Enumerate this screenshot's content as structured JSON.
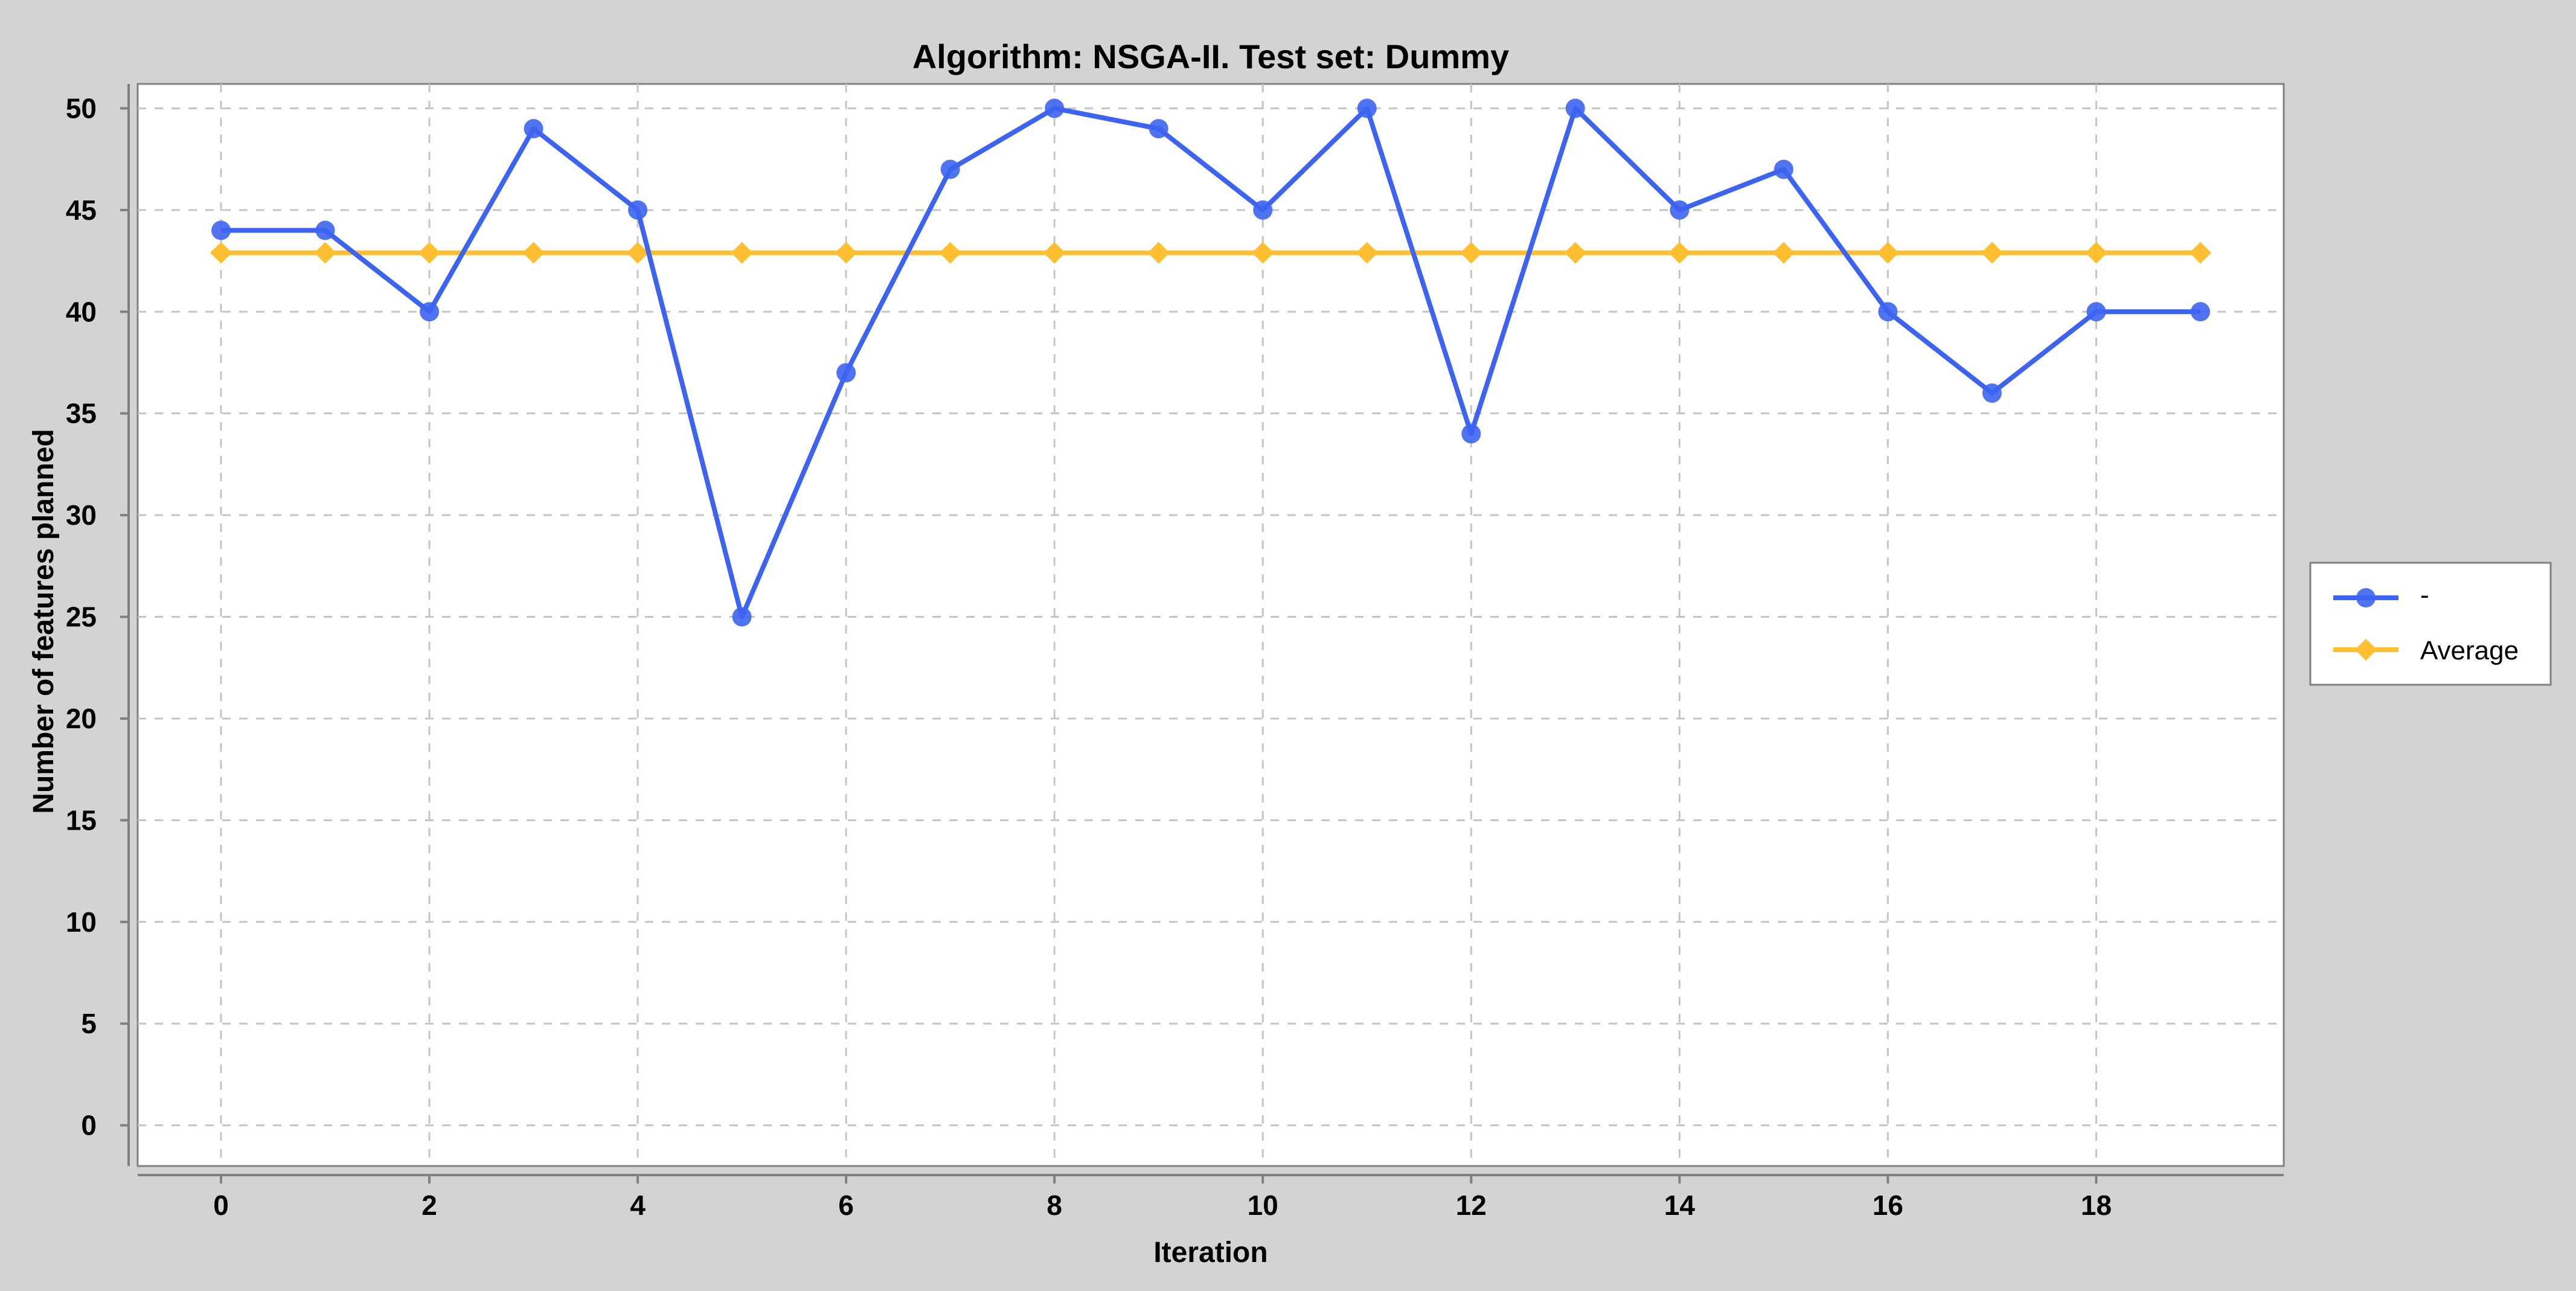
{
  "chart_data": {
    "type": "line",
    "title": "Algorithm: NSGA-II. Test set: Dummy",
    "xlabel": "Iteration",
    "ylabel": "Number of features planned",
    "x": [
      0,
      1,
      2,
      3,
      4,
      5,
      6,
      7,
      8,
      9,
      10,
      11,
      12,
      13,
      14,
      15,
      16,
      17,
      18,
      19
    ],
    "xticks": [
      "0",
      "2",
      "4",
      "6",
      "8",
      "10",
      "12",
      "14",
      "16",
      "18"
    ],
    "yticks": [
      "0",
      "5",
      "10",
      "15",
      "20",
      "25",
      "30",
      "35",
      "40",
      "45",
      "50"
    ],
    "xlim": [
      -0.8,
      19.8
    ],
    "ylim": [
      -2,
      51.2
    ],
    "grid": true,
    "legend_position": "right",
    "series": [
      {
        "name": "-",
        "color": "#3c64f0",
        "marker": "circle",
        "values": [
          44,
          44,
          40,
          49,
          45,
          25,
          37,
          47,
          50,
          49,
          45,
          50,
          34,
          50,
          45,
          47,
          40,
          36,
          40,
          40
        ]
      },
      {
        "name": "Average",
        "color": "#ffbf30",
        "marker": "diamond",
        "values": [
          42.9,
          42.9,
          42.9,
          42.9,
          42.9,
          42.9,
          42.9,
          42.9,
          42.9,
          42.9,
          42.9,
          42.9,
          42.9,
          42.9,
          42.9,
          42.9,
          42.9,
          42.9,
          42.9,
          42.9
        ]
      }
    ]
  }
}
